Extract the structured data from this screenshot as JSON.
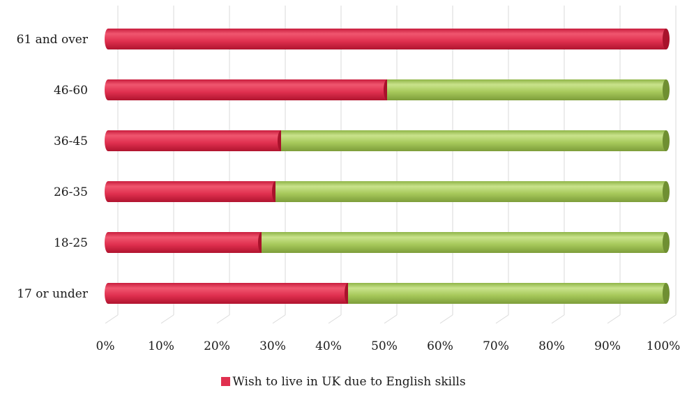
{
  "chart_data": {
    "type": "bar",
    "orientation": "horizontal",
    "stacked": true,
    "percent_stacked": true,
    "categories": [
      "61 and over",
      "46-60",
      "36-45",
      "26-35",
      "18-25",
      "17 or under"
    ],
    "series": [
      {
        "name": "Wish to live in UK due to English skills",
        "values": [
          100,
          50,
          31,
          30,
          27.5,
          43
        ],
        "color": "#e0304f"
      },
      {
        "values": [
          0,
          50,
          69,
          70,
          72.5,
          57
        ],
        "color": "#a6c85a"
      }
    ],
    "xlim": [
      0,
      100
    ],
    "x_ticks": [
      "0%",
      "10%",
      "20%",
      "30%",
      "40%",
      "50%",
      "60%",
      "70%",
      "80%",
      "90%",
      "100%"
    ],
    "grid": true,
    "legend_position": "bottom",
    "style": "3d-cylinder"
  }
}
